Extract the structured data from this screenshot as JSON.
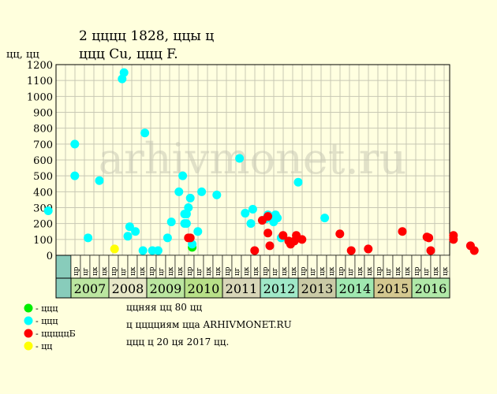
{
  "chart_data": {
    "type": "scatter",
    "title": "2 цццц 1828, ццы ц",
    "subtitle": "ццц Cu, ццц F.",
    "ylabel": "цц, цц",
    "ylim": [
      0,
      1200
    ],
    "y_ticks": [
      "0",
      "100",
      "200",
      "300",
      "400",
      "500",
      "600",
      "700",
      "800",
      "900",
      "1000",
      "1100",
      "1200"
    ],
    "grid": true,
    "watermark": "arhivmonet.ru",
    "quarter_labels": [
      "цк",
      "цр",
      "цг",
      "цк"
    ],
    "years": [
      {
        "label": "2007",
        "color": "#bbe6a0"
      },
      {
        "label": "2008",
        "color": "#e8e8c8"
      },
      {
        "label": "2009",
        "color": "#bbe6a0"
      },
      {
        "label": "2010",
        "color": "#b8e088"
      },
      {
        "label": "2011",
        "color": "#d8d6b8"
      },
      {
        "label": "2012",
        "color": "#a0e8c8"
      },
      {
        "label": "2013",
        "color": "#cacaa6"
      },
      {
        "label": "2014",
        "color": "#a0e8b0"
      },
      {
        "label": "2015",
        "color": "#d4c890"
      },
      {
        "label": "2016",
        "color": "#b0e8a8"
      }
    ],
    "series": [
      {
        "color": "#00ee00",
        "points": [
          [
            3.2,
            50
          ]
        ]
      },
      {
        "color": "#00ffff",
        "points": [
          [
            -0.6,
            280
          ],
          [
            0.1,
            700
          ],
          [
            0.1,
            500
          ],
          [
            0.45,
            110
          ],
          [
            0.75,
            470
          ],
          [
            1.35,
            1110
          ],
          [
            1.4,
            1150
          ],
          [
            1.5,
            120
          ],
          [
            1.55,
            180
          ],
          [
            1.7,
            150
          ],
          [
            1.9,
            30
          ],
          [
            1.95,
            770
          ],
          [
            2.15,
            30
          ],
          [
            2.3,
            30
          ],
          [
            2.55,
            110
          ],
          [
            2.65,
            210
          ],
          [
            2.85,
            400
          ],
          [
            2.95,
            500
          ],
          [
            3.0,
            260
          ],
          [
            3.0,
            200
          ],
          [
            3.05,
            260
          ],
          [
            3.05,
            200
          ],
          [
            3.1,
            300
          ],
          [
            3.15,
            360
          ],
          [
            3.2,
            70
          ],
          [
            3.35,
            150
          ],
          [
            3.45,
            400
          ],
          [
            3.85,
            380
          ],
          [
            4.45,
            610
          ],
          [
            4.6,
            265
          ],
          [
            4.75,
            200
          ],
          [
            4.8,
            290
          ],
          [
            5.15,
            230
          ],
          [
            5.2,
            255
          ],
          [
            5.35,
            210
          ],
          [
            5.4,
            255
          ],
          [
            5.45,
            235
          ],
          [
            5.55,
            110
          ],
          [
            6.0,
            460
          ],
          [
            6.7,
            235
          ]
        ]
      },
      {
        "color": "#ff0000",
        "points": [
          [
            3.1,
            110
          ],
          [
            3.15,
            110
          ],
          [
            4.85,
            30
          ],
          [
            5.05,
            220
          ],
          [
            5.2,
            140
          ],
          [
            5.2,
            245
          ],
          [
            5.25,
            60
          ],
          [
            5.6,
            125
          ],
          [
            5.75,
            90
          ],
          [
            5.8,
            70
          ],
          [
            5.9,
            90
          ],
          [
            5.95,
            125
          ],
          [
            6.1,
            100
          ],
          [
            7.1,
            135
          ],
          [
            7.4,
            30
          ],
          [
            7.85,
            40
          ],
          [
            8.75,
            150
          ],
          [
            9.4,
            115
          ],
          [
            9.45,
            110
          ],
          [
            9.5,
            30
          ],
          [
            10.1,
            125
          ],
          [
            10.1,
            100
          ],
          [
            10.55,
            60
          ],
          [
            10.65,
            30
          ]
        ]
      },
      {
        "color": "#ffff00",
        "points": [
          [
            1.15,
            40
          ]
        ]
      }
    ],
    "legend": [
      {
        "color": "#00ee00",
        "text": "- ццц"
      },
      {
        "color": "#00ffff",
        "text": "- ццц"
      },
      {
        "color": "#ff0000",
        "text": "- цццццБ"
      },
      {
        "color": "#ffff00",
        "text": "- цц"
      }
    ],
    "notes": [
      "ццняя цц 80 цц",
      "ц цццциям цца ARHIVMONET.RU",
      "ццц ц 20 ця 2017 цц."
    ]
  }
}
